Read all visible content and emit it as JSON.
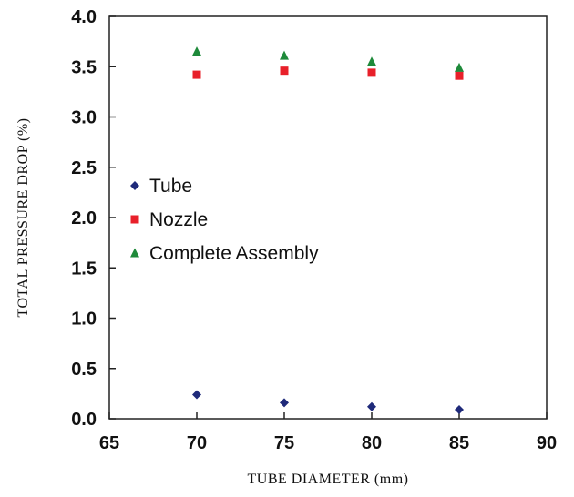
{
  "chart_data": {
    "type": "scatter",
    "xlabel": "TUBE DIAMETER  (mm)",
    "ylabel": "TOTAL PRESSURE DROP  (%)",
    "xlim": [
      65,
      90
    ],
    "ylim": [
      0.0,
      4.0
    ],
    "xticks": [
      "65",
      "70",
      "75",
      "80",
      "85",
      "90"
    ],
    "yticks": [
      "0.0",
      "0.5",
      "1.0",
      "1.5",
      "2.0",
      "2.5",
      "3.0",
      "3.5",
      "4.0"
    ],
    "grid": false,
    "legend_position": "center-left",
    "series": [
      {
        "name": "Tube",
        "marker": "diamond",
        "color": "#1f2a7a",
        "x": [
          70,
          75,
          80,
          85
        ],
        "y": [
          0.24,
          0.16,
          0.12,
          0.09
        ]
      },
      {
        "name": "Nozzle",
        "marker": "square",
        "color": "#e8202a",
        "x": [
          70,
          75,
          80,
          85
        ],
        "y": [
          3.42,
          3.46,
          3.44,
          3.41
        ]
      },
      {
        "name": "Complete Assembly",
        "marker": "triangle",
        "color": "#1e8a3a",
        "x": [
          70,
          75,
          80,
          85
        ],
        "y": [
          3.65,
          3.61,
          3.55,
          3.49
        ]
      }
    ]
  }
}
